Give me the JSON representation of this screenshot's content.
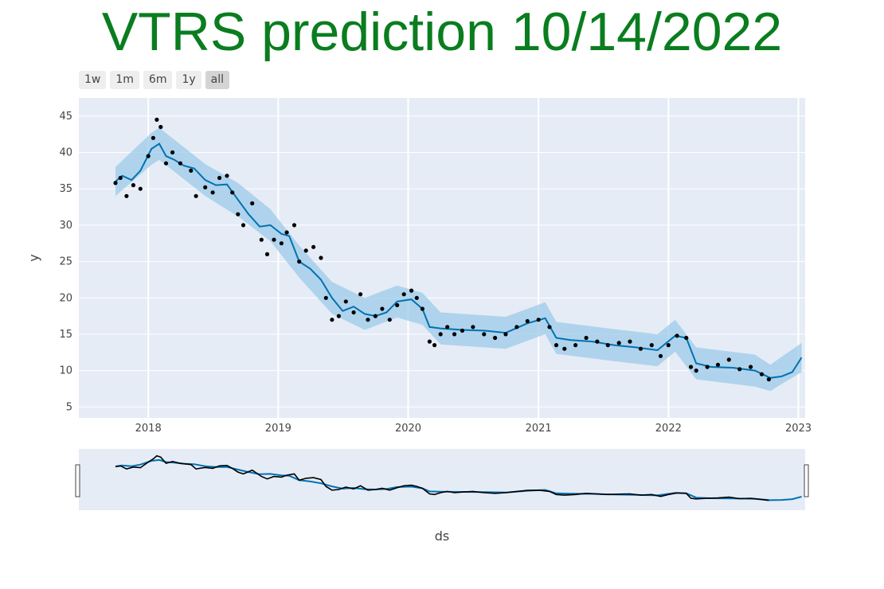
{
  "title": "VTRS prediction 10/14/2022",
  "colors": {
    "title": "#0a7d1f",
    "plot_bg": "#e5ecf6",
    "forecast_line": "#0072b2",
    "uncertainty_band": "#9ccbe8",
    "actual_points": "#000000"
  },
  "range_selector": {
    "buttons": [
      {
        "label": "1w"
      },
      {
        "label": "1m"
      },
      {
        "label": "6m"
      },
      {
        "label": "1y"
      },
      {
        "label": "all",
        "active": true
      }
    ]
  },
  "chart_data": {
    "type": "line",
    "title": "VTRS prediction 10/14/2022",
    "xlabel": "ds",
    "ylabel": "y",
    "x_type": "date",
    "x_ticks": [
      "2018",
      "2019",
      "2020",
      "2021",
      "2022",
      "2023"
    ],
    "y_ticks": [
      5,
      10,
      15,
      20,
      25,
      30,
      35,
      40,
      45
    ],
    "xlim": [
      "2017-06-20",
      "2023-01-20"
    ],
    "ylim": [
      3.5,
      47.5
    ],
    "grid": true,
    "legend": "none",
    "rangeslider": true,
    "series": [
      {
        "role": "forecast",
        "style": "line",
        "points": [
          [
            "2017-10-01",
            36.0
          ],
          [
            "2017-10-20",
            36.8
          ],
          [
            "2017-11-15",
            36.2
          ],
          [
            "2017-12-10",
            37.5
          ],
          [
            "2018-01-10",
            40.5
          ],
          [
            "2018-02-01",
            41.2
          ],
          [
            "2018-02-20",
            39.5
          ],
          [
            "2018-03-15",
            39.0
          ],
          [
            "2018-04-10",
            38.2
          ],
          [
            "2018-05-10",
            37.8
          ],
          [
            "2018-06-10",
            36.2
          ],
          [
            "2018-07-10",
            35.5
          ],
          [
            "2018-08-10",
            35.6
          ],
          [
            "2018-09-10",
            33.5
          ],
          [
            "2018-10-10",
            31.5
          ],
          [
            "2018-11-10",
            29.8
          ],
          [
            "2018-12-10",
            30.0
          ],
          [
            "2019-01-10",
            28.8
          ],
          [
            "2019-02-01",
            28.5
          ],
          [
            "2019-03-01",
            25.0
          ],
          [
            "2019-04-01",
            24.0
          ],
          [
            "2019-05-01",
            22.5
          ],
          [
            "2019-06-01",
            20.0
          ],
          [
            "2019-07-01",
            18.2
          ],
          [
            "2019-08-01",
            18.8
          ],
          [
            "2019-09-01",
            17.8
          ],
          [
            "2019-10-01",
            17.5
          ],
          [
            "2019-11-01",
            18.0
          ],
          [
            "2019-12-01",
            19.5
          ],
          [
            "2020-01-10",
            19.8
          ],
          [
            "2020-02-10",
            18.5
          ],
          [
            "2020-03-01",
            16.0
          ],
          [
            "2020-04-01",
            15.8
          ],
          [
            "2020-06-01",
            15.6
          ],
          [
            "2020-08-01",
            15.5
          ],
          [
            "2020-10-01",
            15.2
          ],
          [
            "2020-12-01",
            16.5
          ],
          [
            "2021-01-20",
            17.2
          ],
          [
            "2021-02-20",
            14.5
          ],
          [
            "2021-04-01",
            14.2
          ],
          [
            "2021-06-01",
            14.0
          ],
          [
            "2021-08-01",
            13.5
          ],
          [
            "2021-10-01",
            13.2
          ],
          [
            "2021-12-01",
            12.8
          ],
          [
            "2022-01-20",
            14.8
          ],
          [
            "2022-02-20",
            14.5
          ],
          [
            "2022-03-20",
            11.0
          ],
          [
            "2022-05-01",
            10.5
          ],
          [
            "2022-07-01",
            10.4
          ],
          [
            "2022-09-01",
            10.0
          ],
          [
            "2022-10-14",
            9.0
          ],
          [
            "2022-11-15",
            9.2
          ],
          [
            "2022-12-15",
            9.8
          ],
          [
            "2023-01-10",
            11.8
          ]
        ]
      },
      {
        "role": "uncertainty",
        "style": "band",
        "lower": [
          [
            "2017-10-01",
            34.0
          ],
          [
            "2018-01-10",
            38.3
          ],
          [
            "2018-02-01",
            39.0
          ],
          [
            "2018-06-10",
            34.0
          ],
          [
            "2018-09-10",
            31.2
          ],
          [
            "2018-12-10",
            27.8
          ],
          [
            "2019-03-01",
            22.8
          ],
          [
            "2019-06-01",
            17.8
          ],
          [
            "2019-09-01",
            15.6
          ],
          [
            "2019-12-01",
            17.3
          ],
          [
            "2020-02-10",
            16.3
          ],
          [
            "2020-04-01",
            13.6
          ],
          [
            "2020-10-01",
            13.0
          ],
          [
            "2021-01-20",
            15.0
          ],
          [
            "2021-02-20",
            12.3
          ],
          [
            "2021-08-01",
            11.3
          ],
          [
            "2021-12-01",
            10.6
          ],
          [
            "2022-01-20",
            12.6
          ],
          [
            "2022-03-20",
            8.8
          ],
          [
            "2022-09-01",
            7.8
          ],
          [
            "2022-10-14",
            7.2
          ],
          [
            "2023-01-10",
            9.8
          ]
        ],
        "upper": [
          [
            "2017-10-01",
            38.0
          ],
          [
            "2018-01-10",
            42.7
          ],
          [
            "2018-02-01",
            43.4
          ],
          [
            "2018-06-10",
            38.4
          ],
          [
            "2018-09-10",
            35.8
          ],
          [
            "2018-12-10",
            32.2
          ],
          [
            "2019-03-01",
            27.2
          ],
          [
            "2019-06-01",
            22.2
          ],
          [
            "2019-09-01",
            20.0
          ],
          [
            "2019-12-01",
            21.7
          ],
          [
            "2020-02-10",
            20.7
          ],
          [
            "2020-04-01",
            18.0
          ],
          [
            "2020-10-01",
            17.4
          ],
          [
            "2021-01-20",
            19.4
          ],
          [
            "2021-02-20",
            16.7
          ],
          [
            "2021-08-01",
            15.7
          ],
          [
            "2021-12-01",
            15.0
          ],
          [
            "2022-01-20",
            17.0
          ],
          [
            "2022-03-20",
            13.2
          ],
          [
            "2022-09-01",
            12.2
          ],
          [
            "2022-10-14",
            10.8
          ],
          [
            "2023-01-10",
            13.8
          ]
        ]
      },
      {
        "role": "actual",
        "style": "markers",
        "points": [
          [
            "2017-10-01",
            35.8
          ],
          [
            "2017-10-15",
            36.5
          ],
          [
            "2017-11-01",
            34.0
          ],
          [
            "2017-11-20",
            35.5
          ],
          [
            "2017-12-10",
            35.0
          ],
          [
            "2018-01-01",
            39.5
          ],
          [
            "2018-01-15",
            42.0
          ],
          [
            "2018-01-25",
            44.5
          ],
          [
            "2018-02-05",
            43.5
          ],
          [
            "2018-02-20",
            38.5
          ],
          [
            "2018-03-10",
            40.0
          ],
          [
            "2018-04-01",
            38.5
          ],
          [
            "2018-05-01",
            37.5
          ],
          [
            "2018-05-15",
            34.0
          ],
          [
            "2018-06-10",
            35.2
          ],
          [
            "2018-07-01",
            34.5
          ],
          [
            "2018-07-20",
            36.5
          ],
          [
            "2018-08-10",
            36.8
          ],
          [
            "2018-08-25",
            34.5
          ],
          [
            "2018-09-10",
            31.5
          ],
          [
            "2018-09-25",
            30.0
          ],
          [
            "2018-10-20",
            33.0
          ],
          [
            "2018-11-15",
            28.0
          ],
          [
            "2018-12-01",
            26.0
          ],
          [
            "2018-12-20",
            28.0
          ],
          [
            "2019-01-10",
            27.5
          ],
          [
            "2019-01-25",
            29.0
          ],
          [
            "2019-02-15",
            30.0
          ],
          [
            "2019-03-01",
            25.0
          ],
          [
            "2019-03-20",
            26.5
          ],
          [
            "2019-04-10",
            27.0
          ],
          [
            "2019-05-01",
            25.5
          ],
          [
            "2019-05-15",
            20.0
          ],
          [
            "2019-06-01",
            17.0
          ],
          [
            "2019-06-20",
            17.5
          ],
          [
            "2019-07-10",
            19.5
          ],
          [
            "2019-08-01",
            18.0
          ],
          [
            "2019-08-20",
            20.5
          ],
          [
            "2019-09-10",
            17.0
          ],
          [
            "2019-10-01",
            17.5
          ],
          [
            "2019-10-20",
            18.5
          ],
          [
            "2019-11-10",
            17.0
          ],
          [
            "2019-12-01",
            19.0
          ],
          [
            "2019-12-20",
            20.5
          ],
          [
            "2020-01-10",
            21.0
          ],
          [
            "2020-01-25",
            20.0
          ],
          [
            "2020-02-10",
            18.5
          ],
          [
            "2020-03-01",
            14.0
          ],
          [
            "2020-03-15",
            13.5
          ],
          [
            "2020-04-01",
            15.0
          ],
          [
            "2020-04-20",
            16.0
          ],
          [
            "2020-05-10",
            15.0
          ],
          [
            "2020-06-01",
            15.5
          ],
          [
            "2020-07-01",
            16.0
          ],
          [
            "2020-08-01",
            15.0
          ],
          [
            "2020-09-01",
            14.5
          ],
          [
            "2020-10-01",
            15.0
          ],
          [
            "2020-11-01",
            16.0
          ],
          [
            "2020-12-01",
            16.8
          ],
          [
            "2021-01-01",
            17.0
          ],
          [
            "2021-02-01",
            16.0
          ],
          [
            "2021-02-20",
            13.5
          ],
          [
            "2021-03-15",
            13.0
          ],
          [
            "2021-04-15",
            13.5
          ],
          [
            "2021-05-15",
            14.5
          ],
          [
            "2021-06-15",
            14.0
          ],
          [
            "2021-07-15",
            13.5
          ],
          [
            "2021-08-15",
            13.8
          ],
          [
            "2021-09-15",
            14.0
          ],
          [
            "2021-10-15",
            13.0
          ],
          [
            "2021-11-15",
            13.5
          ],
          [
            "2021-12-10",
            12.0
          ],
          [
            "2022-01-01",
            13.5
          ],
          [
            "2022-01-25",
            14.8
          ],
          [
            "2022-02-20",
            14.5
          ],
          [
            "2022-03-05",
            10.5
          ],
          [
            "2022-03-20",
            10.0
          ],
          [
            "2022-04-20",
            10.5
          ],
          [
            "2022-05-20",
            10.8
          ],
          [
            "2022-06-20",
            11.5
          ],
          [
            "2022-07-20",
            10.2
          ],
          [
            "2022-08-20",
            10.5
          ],
          [
            "2022-09-20",
            9.5
          ],
          [
            "2022-10-10",
            8.8
          ]
        ]
      }
    ]
  }
}
